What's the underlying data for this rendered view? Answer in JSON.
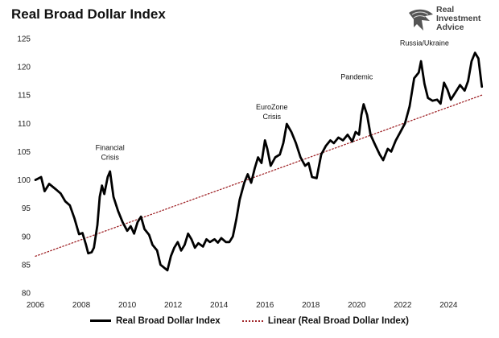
{
  "title": "Real Broad Dollar Index",
  "logo": {
    "line1": "Real",
    "line2": "Investment",
    "line3": "Advice",
    "icon": "eagle-head-icon"
  },
  "chart_data": {
    "type": "line",
    "title": "Real Broad Dollar Index",
    "xlabel": "",
    "ylabel": "",
    "xlim": [
      2006,
      2025.6
    ],
    "ylim": [
      80,
      125
    ],
    "x_ticks": [
      "2006",
      "2008",
      "2010",
      "2012",
      "2014",
      "2016",
      "2018",
      "2020",
      "2022",
      "2024"
    ],
    "y_ticks": [
      "80",
      "85",
      "90",
      "95",
      "100",
      "105",
      "110",
      "115",
      "120",
      "125"
    ],
    "grid": false,
    "legend_position": "bottom",
    "series": [
      {
        "name": "Real Broad Dollar Index",
        "color": "#000000",
        "style": "solid",
        "points": [
          [
            2006.0,
            100.0
          ],
          [
            2006.25,
            100.5
          ],
          [
            2006.4,
            98.0
          ],
          [
            2006.6,
            99.3
          ],
          [
            2006.9,
            98.3
          ],
          [
            2007.1,
            97.6
          ],
          [
            2007.3,
            96.2
          ],
          [
            2007.5,
            95.5
          ],
          [
            2007.7,
            93.2
          ],
          [
            2007.9,
            90.4
          ],
          [
            2008.05,
            90.6
          ],
          [
            2008.2,
            88.6
          ],
          [
            2008.3,
            87.0
          ],
          [
            2008.45,
            87.2
          ],
          [
            2008.55,
            88.0
          ],
          [
            2008.7,
            92.0
          ],
          [
            2008.8,
            97.0
          ],
          [
            2008.9,
            99.0
          ],
          [
            2009.0,
            97.5
          ],
          [
            2009.15,
            100.5
          ],
          [
            2009.25,
            101.5
          ],
          [
            2009.4,
            97.0
          ],
          [
            2009.6,
            94.5
          ],
          [
            2009.8,
            92.5
          ],
          [
            2010.0,
            91.0
          ],
          [
            2010.15,
            91.8
          ],
          [
            2010.3,
            90.5
          ],
          [
            2010.45,
            92.5
          ],
          [
            2010.6,
            93.5
          ],
          [
            2010.75,
            91.3
          ],
          [
            2010.95,
            90.3
          ],
          [
            2011.1,
            88.5
          ],
          [
            2011.3,
            87.5
          ],
          [
            2011.45,
            85.0
          ],
          [
            2011.6,
            84.5
          ],
          [
            2011.75,
            84.0
          ],
          [
            2011.9,
            86.5
          ],
          [
            2012.05,
            88.0
          ],
          [
            2012.2,
            89.0
          ],
          [
            2012.35,
            87.5
          ],
          [
            2012.5,
            88.5
          ],
          [
            2012.65,
            90.5
          ],
          [
            2012.8,
            89.5
          ],
          [
            2012.95,
            88.0
          ],
          [
            2013.1,
            88.8
          ],
          [
            2013.3,
            88.2
          ],
          [
            2013.45,
            89.5
          ],
          [
            2013.6,
            89.0
          ],
          [
            2013.8,
            89.5
          ],
          [
            2013.95,
            88.9
          ],
          [
            2014.1,
            89.7
          ],
          [
            2014.3,
            89.0
          ],
          [
            2014.45,
            89.0
          ],
          [
            2014.6,
            90.0
          ],
          [
            2014.75,
            93.0
          ],
          [
            2014.9,
            96.5
          ],
          [
            2015.1,
            99.5
          ],
          [
            2015.25,
            101.0
          ],
          [
            2015.4,
            99.5
          ],
          [
            2015.55,
            102.0
          ],
          [
            2015.7,
            104.0
          ],
          [
            2015.85,
            103.0
          ],
          [
            2016.0,
            107.0
          ],
          [
            2016.1,
            105.5
          ],
          [
            2016.25,
            102.5
          ],
          [
            2016.45,
            104.0
          ],
          [
            2016.65,
            104.5
          ],
          [
            2016.8,
            106.5
          ],
          [
            2016.95,
            109.9
          ],
          [
            2017.15,
            108.5
          ],
          [
            2017.35,
            106.5
          ],
          [
            2017.55,
            104.0
          ],
          [
            2017.75,
            102.5
          ],
          [
            2017.9,
            103.0
          ],
          [
            2018.05,
            100.5
          ],
          [
            2018.25,
            100.3
          ],
          [
            2018.45,
            104.5
          ],
          [
            2018.65,
            106.0
          ],
          [
            2018.85,
            107.0
          ],
          [
            2019.0,
            106.5
          ],
          [
            2019.2,
            107.5
          ],
          [
            2019.4,
            107.0
          ],
          [
            2019.6,
            108.0
          ],
          [
            2019.8,
            106.8
          ],
          [
            2019.95,
            108.5
          ],
          [
            2020.1,
            108.0
          ],
          [
            2020.2,
            111.5
          ],
          [
            2020.3,
            113.4
          ],
          [
            2020.45,
            111.5
          ],
          [
            2020.6,
            108.0
          ],
          [
            2020.8,
            106.2
          ],
          [
            2021.0,
            104.5
          ],
          [
            2021.15,
            103.5
          ],
          [
            2021.35,
            105.5
          ],
          [
            2021.5,
            105.0
          ],
          [
            2021.7,
            107.0
          ],
          [
            2021.9,
            108.5
          ],
          [
            2022.1,
            110.0
          ],
          [
            2022.3,
            113.0
          ],
          [
            2022.5,
            118.0
          ],
          [
            2022.7,
            119.0
          ],
          [
            2022.8,
            121.0
          ],
          [
            2022.95,
            117.0
          ],
          [
            2023.1,
            114.5
          ],
          [
            2023.3,
            114.0
          ],
          [
            2023.5,
            114.2
          ],
          [
            2023.65,
            113.5
          ],
          [
            2023.8,
            117.2
          ],
          [
            2023.95,
            116.0
          ],
          [
            2024.1,
            114.2
          ],
          [
            2024.3,
            115.5
          ],
          [
            2024.5,
            116.8
          ],
          [
            2024.7,
            115.8
          ],
          [
            2024.85,
            117.5
          ],
          [
            2025.0,
            121.0
          ],
          [
            2025.15,
            122.5
          ],
          [
            2025.3,
            121.5
          ],
          [
            2025.45,
            116.5
          ]
        ]
      },
      {
        "name": "Linear (Real Broad Dollar Index)",
        "color": "#a0262a",
        "style": "dotted",
        "points": [
          [
            2006.0,
            86.5
          ],
          [
            2025.45,
            115.0
          ]
        ]
      }
    ],
    "annotations": [
      {
        "lines": [
          "Financial",
          "Crisis"
        ],
        "x": 2009.25,
        "y": 105.3
      },
      {
        "lines": [
          "EuroZone",
          "Crisis"
        ],
        "x": 2016.3,
        "y": 112.5
      },
      {
        "lines": [
          "Pandemic"
        ],
        "x": 2020.0,
        "y": 117.8
      },
      {
        "lines": [
          "Russia/Ukraine"
        ],
        "x": 2022.95,
        "y": 123.8
      }
    ]
  }
}
